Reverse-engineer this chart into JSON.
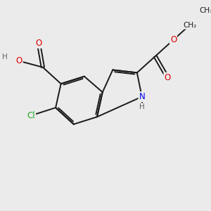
{
  "bg_color": "#ebebeb",
  "bond_color": "#1a1a1a",
  "n_color": "#0000ee",
  "o_color": "#dd0000",
  "cl_color": "#22aa22",
  "h_color": "#606060",
  "bond_width": 1.4,
  "font_size_atoms": 8.5,
  "font_size_small": 7.5,
  "xlim": [
    0,
    10
  ],
  "ylim": [
    0,
    10
  ],
  "figsize": [
    3.0,
    3.0
  ],
  "dpi": 100
}
